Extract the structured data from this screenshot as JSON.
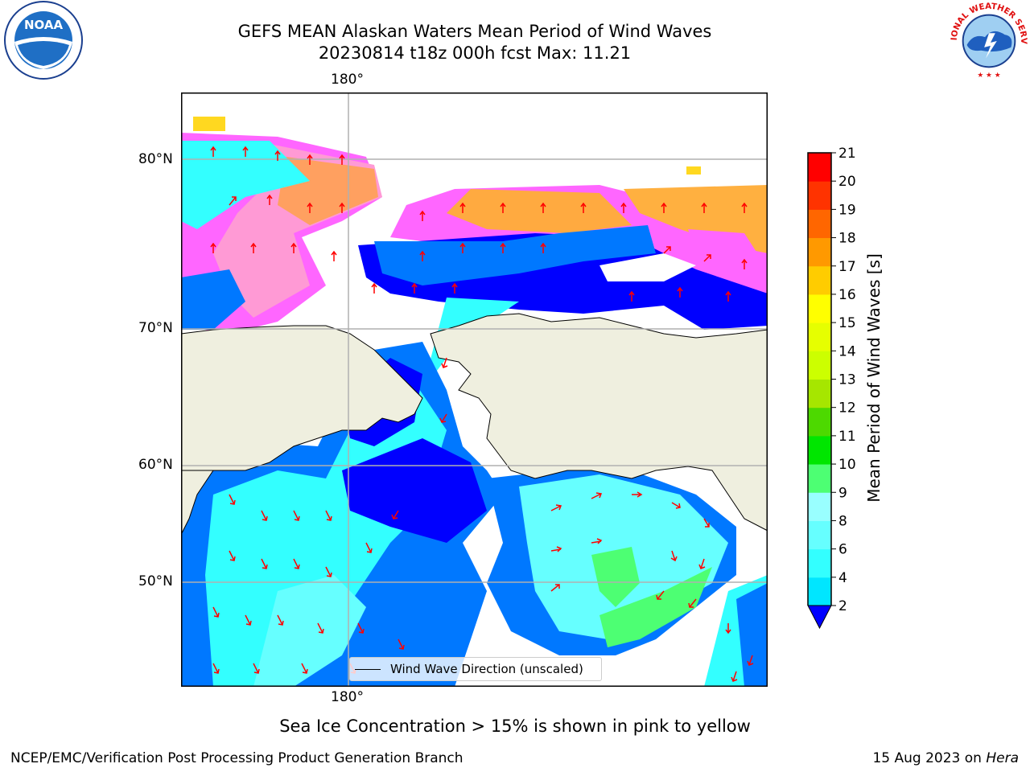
{
  "title_line1": "GEFS MEAN Alaskan Waters Mean Period of Wind Waves",
  "title_line2": "20230814 t18z 000h fcst   Max: 11.21",
  "logos": {
    "left": {
      "icon": "noaa-logo",
      "word": "NOAA",
      "ring_text": "NATIONAL OCEANIC AND ATMOSPHERIC ADMINISTRATION · U.S. DEPARTMENT OF COMMERCE"
    },
    "right": {
      "icon": "nws-logo",
      "ring_text": "NATIONAL WEATHER SERVICE"
    }
  },
  "map": {
    "lon_tick_top": "180°",
    "lon_tick_bottom": "180°",
    "lat_ticks": [
      "80°N",
      "70°N",
      "60°N",
      "50°N"
    ],
    "land_color": "#efefdf",
    "ocean_no_data_color": "#ffffff",
    "legend_label": "Wind Wave Direction (unscaled)",
    "vector_color": "#ff0000"
  },
  "colorbar": {
    "label": "Mean Period of Wind Waves [s]",
    "ticks": [
      "2",
      "4",
      "6",
      "8",
      "9",
      "10",
      "11",
      "12",
      "13",
      "14",
      "15",
      "16",
      "17",
      "18",
      "19",
      "20",
      "21"
    ],
    "colors": [
      "#0078ff",
      "#00e6ff",
      "#33ffff",
      "#66ffff",
      "#99ffff",
      "#4dff73",
      "#00e600",
      "#4dd900",
      "#a6e600",
      "#ccff00",
      "#e6ff00",
      "#ffff00",
      "#ffcc00",
      "#ff9900",
      "#ff6600",
      "#ff3300",
      "#ff0000"
    ],
    "extend_color": "#0000ff"
  },
  "note": "Sea Ice Concentration > 15% is shown in pink to yellow",
  "footer_left": "NCEP/EMC/Verification Post Processing Product Generation Branch",
  "footer_right_prefix": "15 Aug 2023 on ",
  "footer_right_machine": "Hera"
}
